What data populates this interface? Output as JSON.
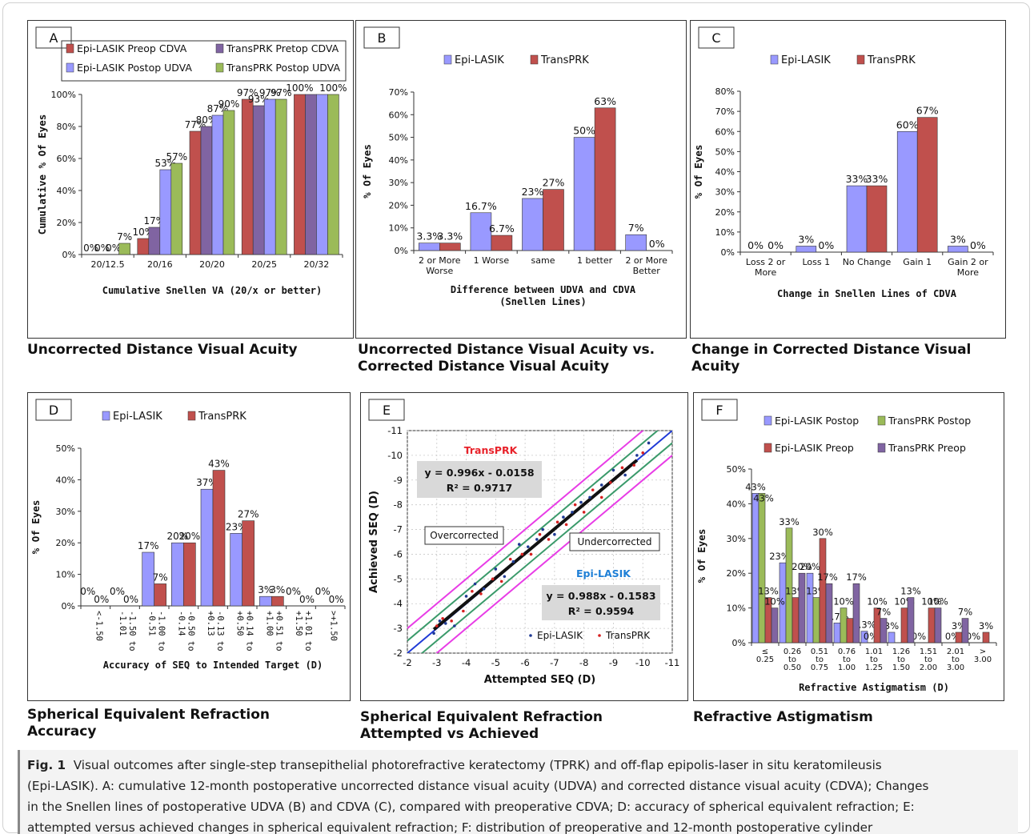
{
  "chart_data": [
    {
      "id": "A",
      "type": "bar",
      "panel_label": "A",
      "title": "Uncorrected Distance Visual Acuity",
      "xlabel": "Cumulative Snellen VA (20/x or better)",
      "ylabel": "Cumulative % Of Eyes",
      "ylim": [
        0,
        100
      ],
      "yticks": [
        "0%",
        "20%",
        "40%",
        "60%",
        "80%",
        "100%"
      ],
      "legend_position": "top",
      "categories": [
        "20/12.5",
        "20/16",
        "20/20",
        "20/25",
        "20/32"
      ],
      "series": [
        {
          "name": "Epi-LASIK Preop CDVA",
          "color": "#c0504d",
          "values": [
            0,
            10,
            77,
            97,
            100
          ],
          "labels": [
            "0%",
            "10%",
            "77%",
            "97%",
            "100%"
          ]
        },
        {
          "name": "TransPRK Pretop CDVA",
          "color": "#8064a2",
          "values": [
            0,
            17,
            80,
            93,
            100
          ],
          "labels": [
            "0%",
            "17%",
            "80%",
            "93%",
            ""
          ]
        },
        {
          "name": "Epi-LASIK Postop UDVA",
          "color": "#9999ff",
          "values": [
            0,
            53,
            87,
            97,
            100
          ],
          "labels": [
            "0%",
            "53%",
            "87%",
            "97%",
            ""
          ]
        },
        {
          "name": "TransPRK Postop UDVA",
          "color": "#9bbb59",
          "values": [
            7,
            57,
            90,
            97,
            100
          ],
          "labels": [
            "7%",
            "57%",
            "90%",
            "97%",
            "100%"
          ]
        }
      ]
    },
    {
      "id": "B",
      "type": "bar",
      "panel_label": "B",
      "title": "Uncorrected Distance Visual Acuity vs. Corrected Distance Visual Acuity",
      "xlabel": "Difference between  UDVA and CDVA (Snellen Lines)",
      "ylabel": "% Of Eyes",
      "ylim": [
        0,
        70
      ],
      "yticks": [
        "0%",
        "10%",
        "20%",
        "30%",
        "40%",
        "50%",
        "60%",
        "70%"
      ],
      "legend_position": "top",
      "categories": [
        "2 or More Worse",
        "1 Worse",
        "same",
        "1 better",
        "2 or More Better"
      ],
      "series": [
        {
          "name": "Epi-LASIK",
          "color": "#9999ff",
          "values": [
            3.3,
            16.7,
            23,
            50,
            7
          ],
          "labels": [
            "3.3%",
            "16.7%",
            "23%",
            "50%",
            "7%"
          ]
        },
        {
          "name": "TransPRK",
          "color": "#c0504d",
          "values": [
            3.3,
            6.7,
            27,
            63,
            0
          ],
          "labels": [
            "3.3%",
            "6.7%",
            "27%",
            "63%",
            "0%"
          ]
        }
      ]
    },
    {
      "id": "C",
      "type": "bar",
      "panel_label": "C",
      "title": "Change in Corrected Distance Visual Acuity",
      "xlabel": "Change in Snellen Lines of CDVA",
      "ylabel": "% Of Eyes",
      "ylim": [
        0,
        80
      ],
      "yticks": [
        "0%",
        "10%",
        "20%",
        "30%",
        "40%",
        "50%",
        "60%",
        "70%",
        "80%"
      ],
      "legend_position": "top",
      "categories": [
        "Loss 2 or More",
        "Loss 1",
        "No Change",
        "Gain 1",
        "Gain 2 or More"
      ],
      "series": [
        {
          "name": "Epi-LASIK",
          "color": "#9999ff",
          "values": [
            0,
            3,
            33,
            60,
            3
          ],
          "labels": [
            "0%",
            "3%",
            "33%",
            "60%",
            "3%"
          ]
        },
        {
          "name": "TransPRK",
          "color": "#c0504d",
          "values": [
            0,
            0,
            33,
            67,
            0
          ],
          "labels": [
            "0%",
            "0%",
            "33%",
            "67%",
            "0%"
          ]
        }
      ]
    },
    {
      "id": "D",
      "type": "bar",
      "panel_label": "D",
      "title": "Spherical Equivalent Refraction Accuracy",
      "xlabel": "Accuracy of SEQ to Intended Target (D)",
      "ylabel": "% Of Eyes",
      "ylim": [
        0,
        50
      ],
      "yticks": [
        "0%",
        "10%",
        "20%",
        "30%",
        "40%",
        "50%"
      ],
      "legend_position": "top",
      "categories": [
        "<-1.50",
        "-1.50 to -1.01",
        "-1.00 to -0.51",
        "-0.50 to -0.14",
        "-0.13 to +0.13",
        "+0.14 to +0.50",
        "+0.51 to +1.00",
        "+1.01 to +1.50",
        ">+1.50"
      ],
      "series": [
        {
          "name": "Epi-LASIK",
          "color": "#9999ff",
          "values": [
            0,
            0,
            17,
            20,
            37,
            23,
            3,
            0,
            0
          ],
          "labels": [
            "0%",
            "0%",
            "17%",
            "20%",
            "37%",
            "23%",
            "3%",
            "0%",
            "0%"
          ]
        },
        {
          "name": "TransPRK",
          "color": "#c0504d",
          "values": [
            0,
            0,
            7,
            20,
            43,
            27,
            3,
            0,
            0
          ],
          "labels": [
            "0%",
            "0%",
            "7%",
            "20%",
            "43%",
            "27%",
            "3%",
            "0%",
            "0%"
          ]
        }
      ]
    },
    {
      "id": "E",
      "type": "scatter",
      "panel_label": "E",
      "title": "Spherical Equivalent Refraction Attempted vs Achieved",
      "xlabel": "Attempted SEQ (D)",
      "ylabel": "Achieved SEQ (D)",
      "xlim": [
        -2,
        -11
      ],
      "ylim": [
        -2,
        -11
      ],
      "xticks": [
        "-2",
        "-3",
        "-4",
        "-5",
        "-6",
        "-7",
        "-8",
        "-9",
        "-10",
        "-11"
      ],
      "yticks": [
        "-2",
        "-3",
        "-4",
        "-5",
        "-6",
        "-7",
        "-8",
        "-9",
        "-10",
        "-11"
      ],
      "annotations": {
        "transprk_label": "TransPRK",
        "transprk_eq": "y = 0.996x - 0.0158",
        "transprk_r2": "R² = 0.9717",
        "epilasik_label": "Epi-LASIK",
        "epilasik_eq": "y = 0.988x - 0.1583",
        "epilasik_r2": "R² = 0.9594",
        "overcorrected": "Overcorrected",
        "undercorrected": "Undercorrected"
      },
      "legend": [
        "Epi-LASIK",
        "TransPRK"
      ],
      "series": [
        {
          "name": "Epi-LASIK",
          "color": "#1f3a93",
          "fit": {
            "slope": 0.988,
            "intercept": -0.1583
          },
          "x": [
            -2.9,
            -3.1,
            -3.3,
            -3.6,
            -4.0,
            -4.3,
            -4.6,
            -5.0,
            -5.3,
            -5.6,
            -5.8,
            -6.1,
            -6.4,
            -6.6,
            -7.0,
            -7.3,
            -7.6,
            -7.9,
            -8.2,
            -8.6,
            -9.0,
            -9.4,
            -9.8,
            -10.2
          ],
          "y": [
            -2.8,
            -3.3,
            -3.2,
            -3.1,
            -4.3,
            -4.8,
            -4.6,
            -5.4,
            -5.1,
            -5.7,
            -6.4,
            -6.3,
            -6.6,
            -7.0,
            -6.8,
            -7.5,
            -7.7,
            -8.1,
            -8.3,
            -8.8,
            -9.4,
            -9.2,
            -10.0,
            -10.5
          ]
        },
        {
          "name": "TransPRK",
          "color": "#d62020",
          "fit": {
            "slope": 0.996,
            "intercept": -0.0158
          },
          "x": [
            -3.0,
            -3.2,
            -3.5,
            -3.9,
            -4.2,
            -4.5,
            -4.9,
            -5.2,
            -5.5,
            -5.9,
            -6.2,
            -6.5,
            -6.8,
            -7.1,
            -7.4,
            -7.7,
            -8.0,
            -8.3,
            -8.6,
            -8.9,
            -9.3,
            -9.7,
            -10.0
          ],
          "y": [
            -3.1,
            -3.4,
            -3.3,
            -3.7,
            -4.5,
            -4.4,
            -5.0,
            -4.9,
            -5.8,
            -6.0,
            -6.0,
            -6.8,
            -6.6,
            -7.3,
            -7.2,
            -8.0,
            -7.7,
            -8.6,
            -8.3,
            -8.9,
            -9.5,
            -9.6,
            -10.1
          ]
        }
      ]
    },
    {
      "id": "F",
      "type": "bar",
      "panel_label": "F",
      "title": "Refractive Astigmatism",
      "xlabel": "Refractive Astigmatism (D)",
      "ylabel": "% Of Eyes",
      "ylim": [
        0,
        50
      ],
      "yticks": [
        "0%",
        "10%",
        "20%",
        "30%",
        "40%",
        "50%"
      ],
      "legend_position": "top",
      "categories": [
        "≤ 0.25",
        "0.26 to 0.50",
        "0.51 to 0.75",
        "0.76 to 1.00",
        "1.01 to 1.25",
        "1.26 to 1.50",
        "1.51 to 2.00",
        "2.01 to 3.00",
        "> 3.00"
      ],
      "series": [
        {
          "name": "Epi-LASIK Postop",
          "color": "#9999ff",
          "values": [
            43,
            23,
            20,
            5.7,
            3.3,
            3,
            0,
            0,
            0
          ],
          "labels": [
            "43%",
            "23%",
            "20%",
            "5.7%",
            "3.3%",
            "3%",
            "0%",
            "",
            "0%"
          ]
        },
        {
          "name": "TransPRK Postop",
          "color": "#9bbb59",
          "values": [
            43,
            33,
            13,
            10,
            0,
            0,
            0,
            0,
            0
          ],
          "labels": [
            "43%",
            "33%",
            "13%",
            "10%",
            "0%",
            "",
            "",
            "0%",
            ""
          ]
        },
        {
          "name": "Epi-LASIK Preop",
          "color": "#c0504d",
          "values": [
            13,
            13,
            30,
            7,
            10,
            10,
            10,
            3,
            3
          ],
          "labels": [
            "13%",
            "13%",
            "30%",
            "",
            "10%",
            "10%",
            "10%",
            "3%",
            "3%"
          ]
        },
        {
          "name": "TransPRK Preop",
          "color": "#8064a2",
          "values": [
            10,
            20,
            17,
            17,
            7,
            13,
            10,
            7,
            0
          ],
          "labels": [
            "10%",
            "20%",
            "17%",
            "17%",
            "7%",
            "13%",
            "10%",
            "7%",
            ""
          ]
        }
      ]
    }
  ],
  "caption": {
    "fig_label": "Fig. 1",
    "lines": [
      "Visual outcomes after single-step transepithelial photorefractive keratectomy (TPRK) and off-flap epipolis-laser in situ keratomileusis",
      "(Epi-LASIK). A: cumulative 12-month postoperative uncorrected distance visual acuity (UDVA) and corrected distance visual acuity (CDVA); Changes",
      "in the Snellen lines of postoperative UDVA (B) and CDVA (C), compared with preoperative CDVA; D: accuracy of spherical equivalent refraction; E:",
      "attempted versus achieved changes in spherical equivalent refraction; F: distribution of preoperative and 12-month postoperative cylinder"
    ]
  }
}
